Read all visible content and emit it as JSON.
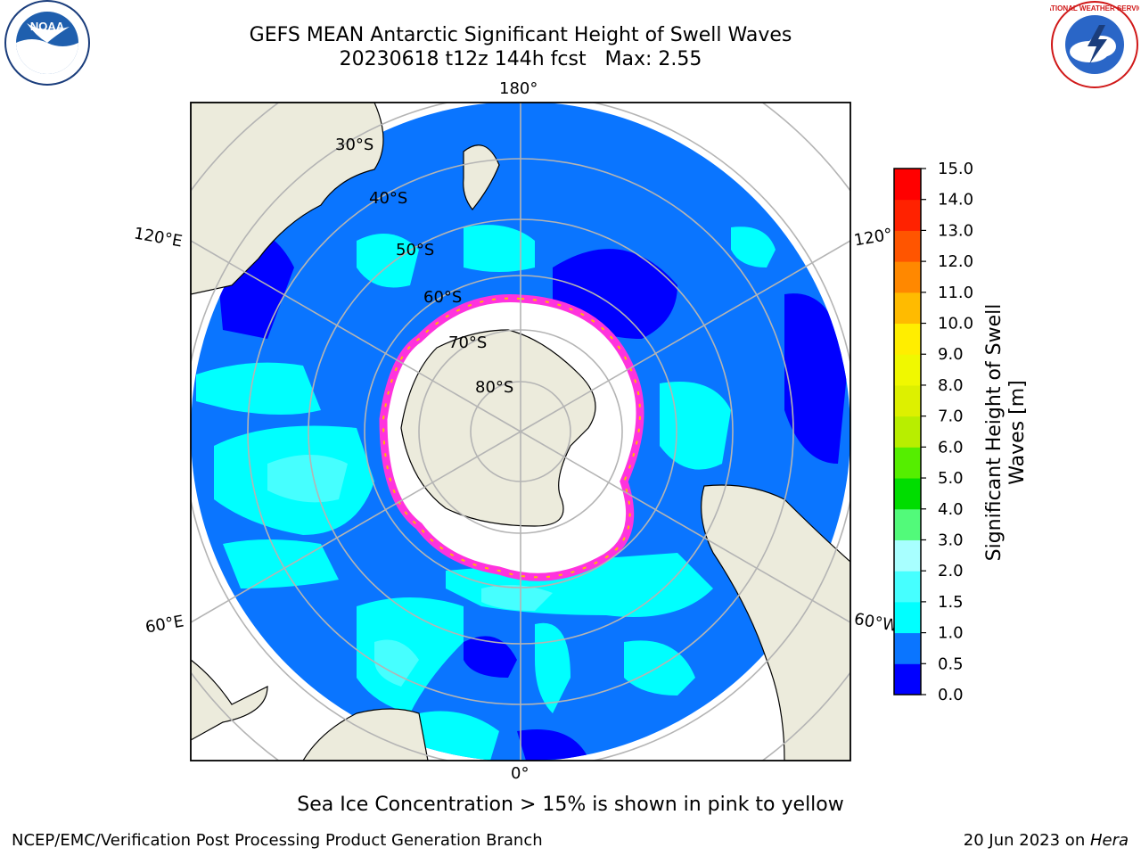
{
  "header": {
    "title": "GEFS MEAN Antarctic Significant Height of Swell Waves",
    "subtitle": "20230618 t12z 144h fcst   Max: 2.55"
  },
  "map": {
    "projection": "south-polar-stereographic",
    "longitude_labels": {
      "top": "180°",
      "bottom": "0°",
      "upper_left": "120°E",
      "upper_right": "120°",
      "lower_left": "60°E",
      "lower_right": "60°W"
    },
    "latitude_labels": [
      "30°S",
      "40°S",
      "50°S",
      "60°S",
      "70°S",
      "80°S"
    ],
    "colors": {
      "land": "#ecebdc",
      "graticule": "#b4b4b4",
      "sea_ice": "#ff33dd",
      "ice_shelf": "#ffffff"
    }
  },
  "colorbar": {
    "label": "Significant Height of Swell Waves [m]",
    "label_line1": "Significant Height of Swell",
    "label_line2": "Waves [m]",
    "ticks": [
      "0.0",
      "0.5",
      "1.0",
      "1.5",
      "2.0",
      "3.0",
      "4.0",
      "5.0",
      "6.0",
      "7.0",
      "8.0",
      "9.0",
      "10.0",
      "11.0",
      "12.0",
      "13.0",
      "14.0",
      "15.0"
    ],
    "colors": [
      "#0000ff",
      "#0a75ff",
      "#00ffff",
      "#46ffff",
      "#a8ffff",
      "#52fa7a",
      "#00dd00",
      "#55ee00",
      "#b8ee00",
      "#ddf000",
      "#f0f800",
      "#ffee00",
      "#ffbb00",
      "#ff8800",
      "#ff5500",
      "#ff2200",
      "#ff0000"
    ]
  },
  "footer": {
    "note": "Sea Ice Concentration > 15% is shown in pink to yellow",
    "credit": "NCEP/EMC/Verification Post Processing Product Generation Branch",
    "date_prefix": "20 Jun 2023 on ",
    "date_machine": "Hera"
  },
  "logos": {
    "noaa_text": "NOAA",
    "nws_text": "NATIONAL WEATHER SERVICE"
  }
}
